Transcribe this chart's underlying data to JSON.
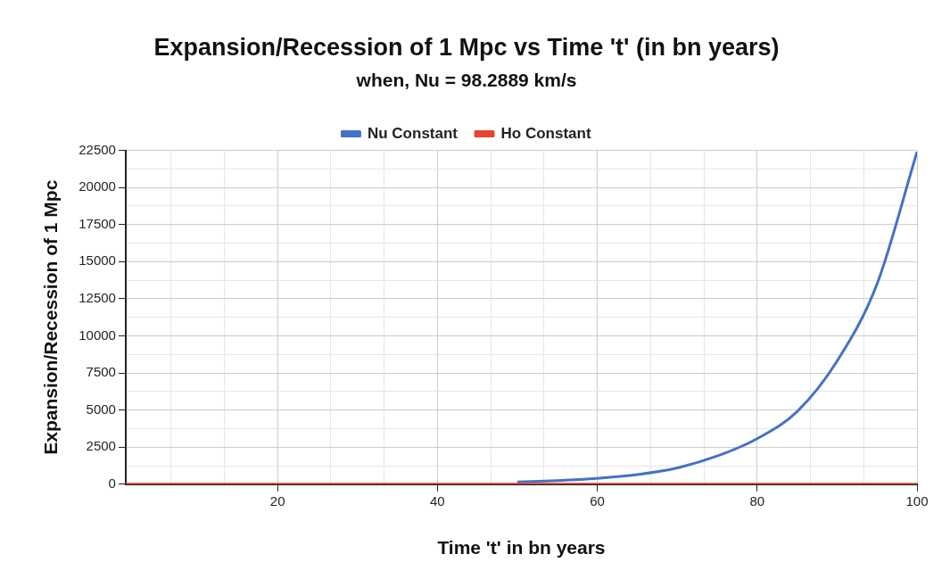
{
  "chart_data": {
    "type": "line",
    "title": "Expansion/Recession of 1 Mpc vs Time 't' (in bn years)",
    "subtitle": "when, Nu = 98.2889 km/s",
    "xlabel": "Time 't' in bn years",
    "ylabel": "Expansion/Recession of 1 Mpc",
    "x": [
      1,
      5,
      10,
      15,
      20,
      25,
      30,
      35,
      40,
      45,
      50,
      55,
      60,
      65,
      70,
      75,
      80,
      85,
      90,
      95,
      100
    ],
    "series": [
      {
        "name": "Nu Constant",
        "color": "#4472c4",
        "values": [
          null,
          null,
          null,
          null,
          null,
          null,
          null,
          null,
          null,
          null,
          150,
          250,
          400,
          650,
          1100,
          1900,
          3070,
          4900,
          8300,
          13500,
          22400
        ]
      },
      {
        "name": "Ho Constant",
        "color": "#e8442e",
        "values": [
          0,
          0,
          0,
          0,
          0,
          0,
          0,
          0,
          0,
          0,
          0,
          0,
          0,
          0,
          0,
          0,
          0,
          0,
          0,
          0,
          0
        ]
      }
    ],
    "xlim": [
      1,
      100
    ],
    "xticks": [
      {
        "value": 6.667,
        "label": null
      },
      {
        "value": 13.333,
        "label": null
      },
      20,
      {
        "value": 26.667,
        "label": null
      },
      {
        "value": 33.333,
        "label": null
      },
      40,
      {
        "value": 46.667,
        "label": null
      },
      {
        "value": 53.333,
        "label": null
      },
      60,
      {
        "value": 66.667,
        "label": null
      },
      {
        "value": 73.333,
        "label": null
      },
      80,
      {
        "value": 86.667,
        "label": null
      },
      {
        "value": 93.333,
        "label": null
      },
      100
    ],
    "ylim": [
      0,
      22500
    ],
    "yticks": [
      0,
      {
        "value": 1250,
        "label": null
      },
      2500,
      {
        "value": 3750,
        "label": null
      },
      5000,
      {
        "value": 6250,
        "label": null
      },
      7500,
      {
        "value": 8750,
        "label": null
      },
      10000,
      {
        "value": 11250,
        "label": null
      },
      12500,
      {
        "value": 13750,
        "label": null
      },
      15000,
      {
        "value": 16250,
        "label": null
      },
      17500,
      {
        "value": 18750,
        "label": null
      },
      20000,
      {
        "value": 21250,
        "label": null
      },
      22500
    ],
    "grid": true,
    "legend": "top",
    "marker": "none",
    "line_style": "solid"
  }
}
